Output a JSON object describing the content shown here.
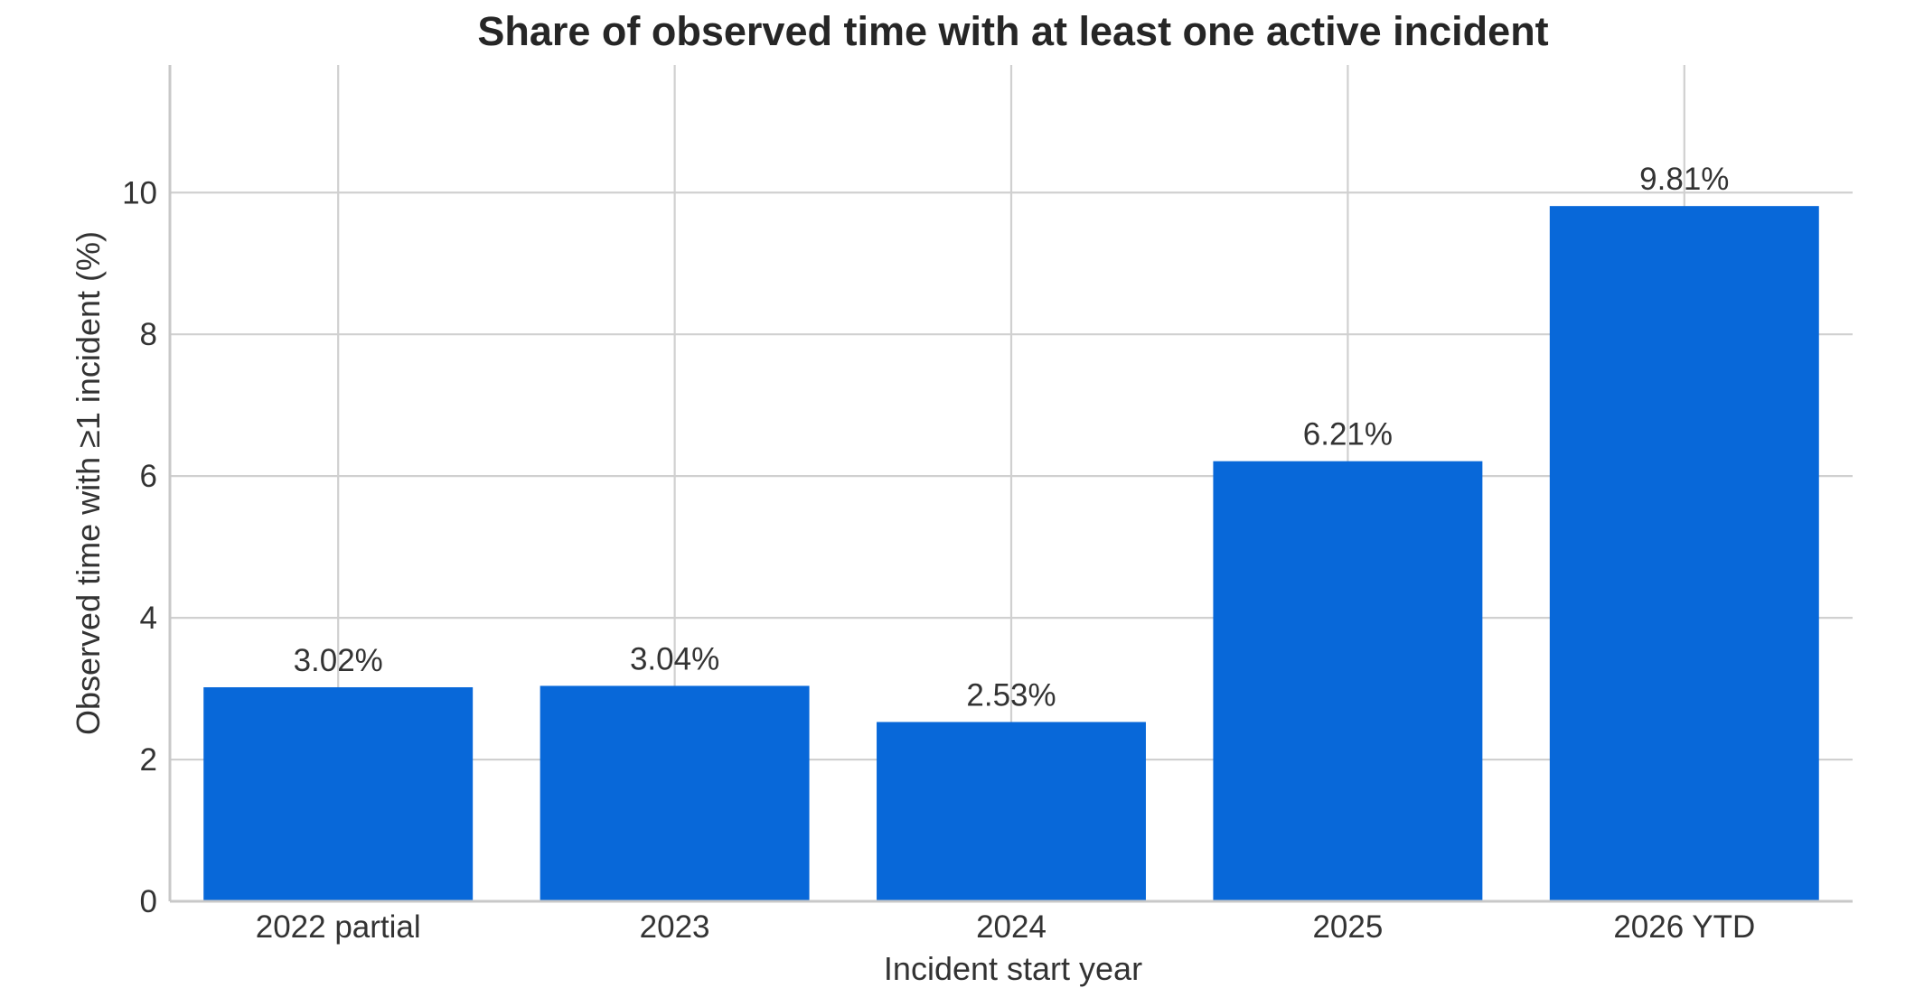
{
  "chart_data": {
    "type": "bar",
    "title": "Share of observed time with at least one active incident",
    "xlabel": "Incident start year",
    "ylabel": "Observed time with ≥1 incident (%)",
    "categories": [
      "2022 partial",
      "2023",
      "2024",
      "2025",
      "2026 YTD"
    ],
    "values": [
      3.02,
      3.04,
      2.53,
      6.21,
      9.81
    ],
    "value_labels": [
      "3.02%",
      "3.04%",
      "2.53%",
      "6.21%",
      "9.81%"
    ],
    "ylim": [
      0,
      11.8
    ],
    "yticks": [
      0,
      2,
      4,
      6,
      8,
      10
    ],
    "ytick_labels": [
      "0",
      "2",
      "4",
      "6",
      "8",
      "10"
    ],
    "grid": true,
    "colors": {
      "bar": "#0868d9",
      "grid": "#d0d0d0",
      "text": "#333333",
      "title": "#262626"
    }
  }
}
